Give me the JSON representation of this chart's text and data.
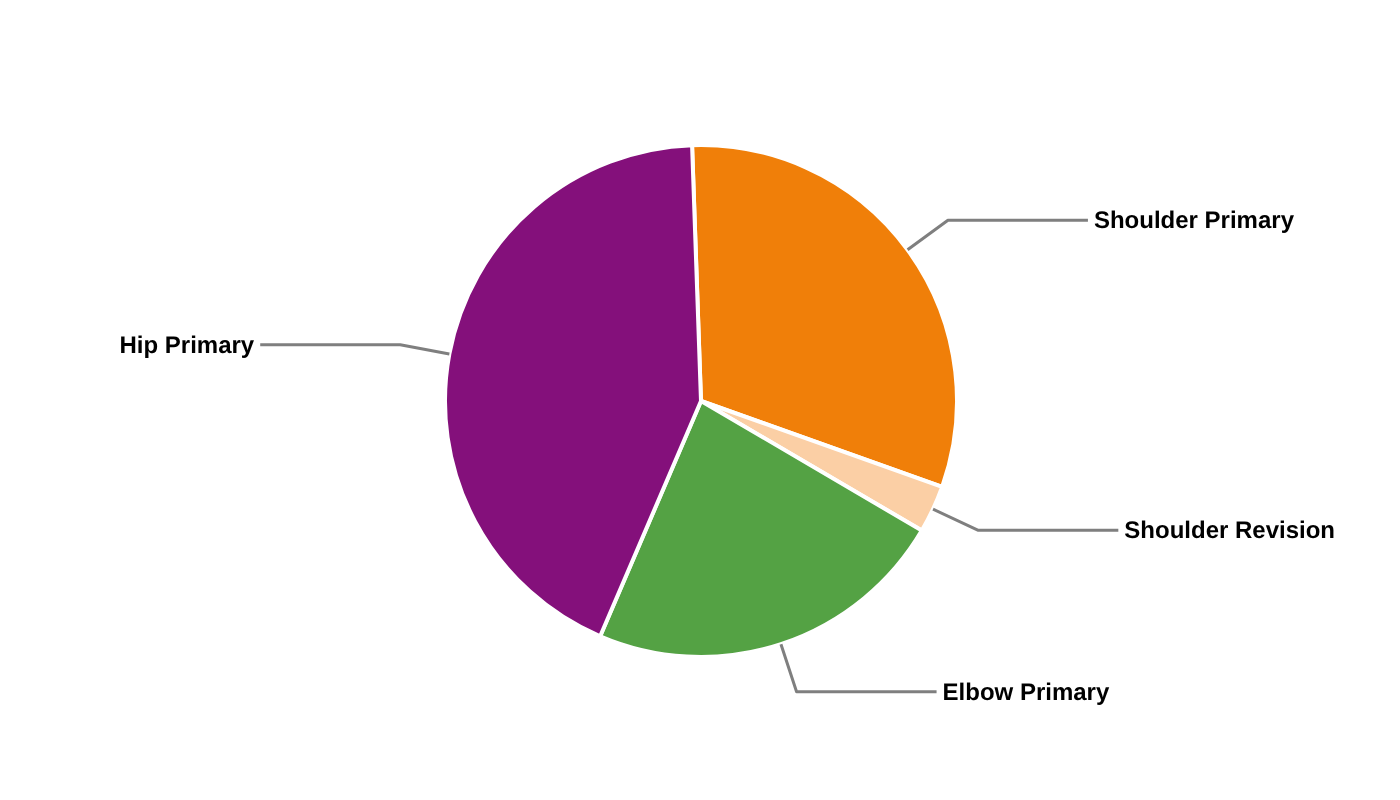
{
  "chart_data": {
    "type": "pie",
    "categories": [
      "Shoulder Primary",
      "Shoulder Revision",
      "Elbow Primary",
      "Hip Primary"
    ],
    "values": [
      31,
      3,
      23,
      43
    ],
    "colors": [
      "#f07f09",
      "#fbcfa5",
      "#54a244",
      "#84107b"
    ]
  }
}
